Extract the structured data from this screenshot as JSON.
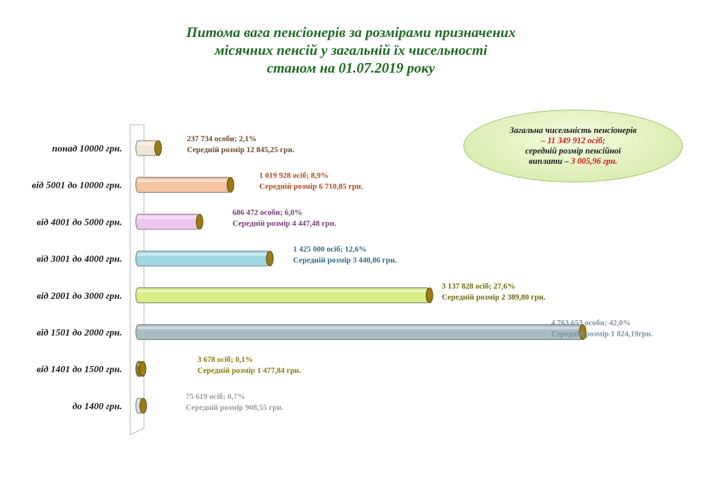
{
  "title_lines": [
    "Питома вага пенсіонерів за розмірами призначених",
    "місячних пенсій у загальній їх чисельності",
    "станом на 01.07.2019 року"
  ],
  "summary": {
    "line1": "Загальна чисельність пенсіонерів",
    "line2": "– 11 349 912 осіб;",
    "line3": "середній розмір пенсійної",
    "line4_a": "виплати – ",
    "line4_b": " 3 005,96 грн."
  },
  "chart_data": {
    "type": "bar",
    "orientation": "horizontal",
    "categories": [
      "понад 10000 грн.",
      "від 5001 до 10000 грн.",
      "від 4001 до 5000 грн.",
      "від 3001 до 4000 грн.",
      "від 2001 до 3000 грн.",
      "від 1501 до 2000 грн.",
      "від 1401 до 1500 грн.",
      "до 1400 грн."
    ],
    "values": [
      2.1,
      8.9,
      6.0,
      12.6,
      27.6,
      42.0,
      0.1,
      0.7
    ],
    "xlim": [
      0,
      42.0
    ],
    "labels_line1": [
      "237 734 особи;  2,1%",
      "1 019 928 осіб; 8,9%",
      "686 472 особи;  6,0%",
      "1 425 000 осіб; 12,6%",
      "3 137 828 осіб; 27,6%",
      "4 763 653 особи;  42,0%",
      "3 678 осіб;  0,1%",
      "75 619 осіб;  0,7%"
    ],
    "labels_line2": [
      "Середній  розмір  12 845,25 грн.",
      "Середній  розмір  6 710,85 грн.",
      "Середній  розмір  4 447,48 грн.",
      "Середній  розмір  3 440,86 грн.",
      "Середній  розмір  2 389,80 грн.",
      "Середній  розмір  1 824,19грн.",
      "Середній  розмір  1 477,84 грн.",
      "Середній  розмір  908,55 грн."
    ],
    "bar_colors": [
      "#efe4d6",
      "#f6c4a2",
      "#eec6ee",
      "#9fd7e3",
      "#d9ee86",
      "#a9bcc4",
      "#8c7a1e",
      "#d9d9d9"
    ],
    "label_colors": [
      "#6b4a2a",
      "#b2481b",
      "#7a3a7a",
      "#2f6e86",
      "#6a6a10",
      "#7a95a0",
      "#8a7a10",
      "#9a9a9a"
    ],
    "cap_color": "#9c7a14"
  }
}
